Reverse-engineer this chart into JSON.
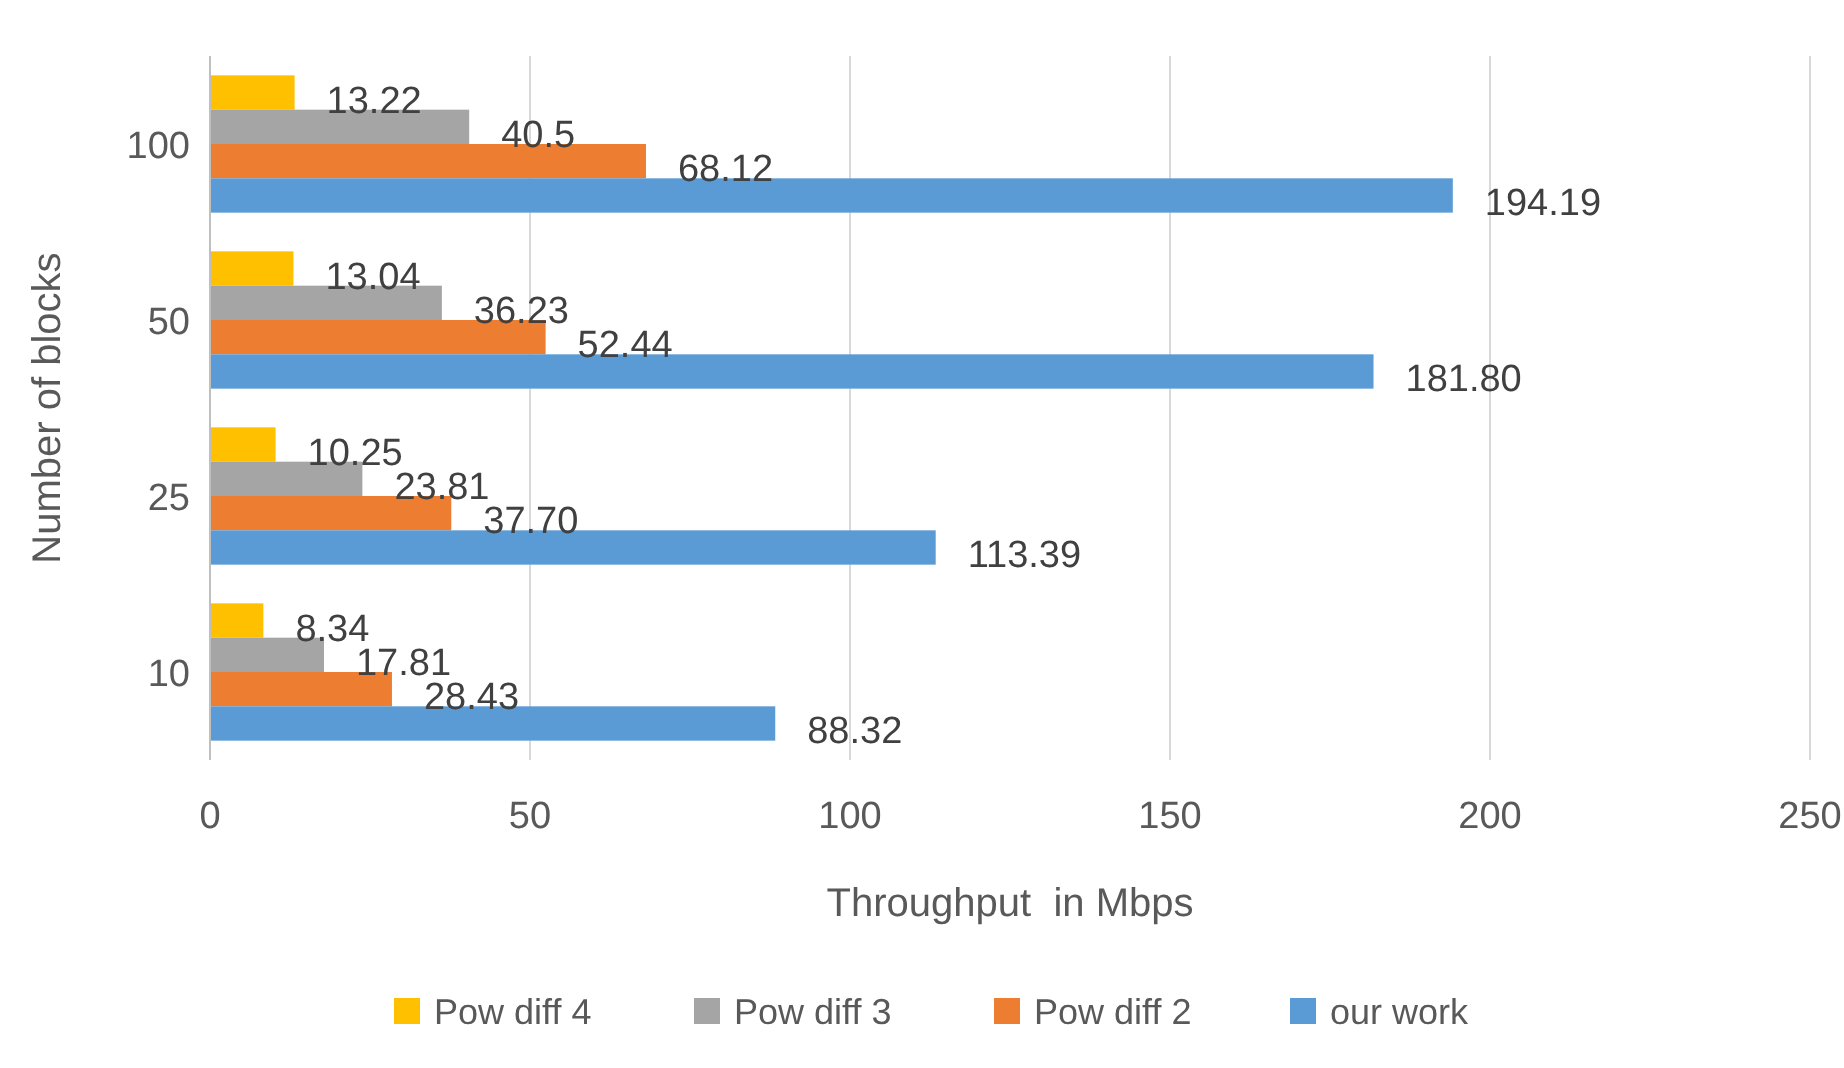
{
  "chart_data": {
    "type": "bar",
    "orientation": "horizontal",
    "xlabel": "Throughput  in Mbps",
    "ylabel": "Number of blocks",
    "categories": [
      "100",
      "50",
      "25",
      "10"
    ],
    "series": [
      {
        "name": "Pow diff 4",
        "color": "#ffc000",
        "values": [
          13.22,
          13.04,
          10.25,
          8.34
        ],
        "value_labels": [
          "13.22",
          "13.04",
          "10.25",
          "8.34"
        ]
      },
      {
        "name": "Pow diff 3",
        "color": "#a5a5a5",
        "values": [
          40.5,
          36.23,
          23.81,
          17.81
        ],
        "value_labels": [
          "40.5",
          "36.23",
          "23.81",
          "17.81"
        ]
      },
      {
        "name": "Pow diff 2",
        "color": "#ed7d31",
        "values": [
          68.12,
          52.44,
          37.7,
          28.43
        ],
        "value_labels": [
          "68.12",
          "52.44",
          "37.70",
          "28.43"
        ]
      },
      {
        "name": "our work",
        "color": "#5b9bd5",
        "values": [
          194.19,
          181.8,
          113.39,
          88.32
        ],
        "value_labels": [
          "194.19",
          "181.80",
          "113.39",
          "88.32"
        ]
      }
    ],
    "xlim": [
      0,
      250
    ],
    "xticks": [
      0,
      50,
      100,
      150,
      200,
      250
    ],
    "grid": "x",
    "legend": "bottom"
  }
}
